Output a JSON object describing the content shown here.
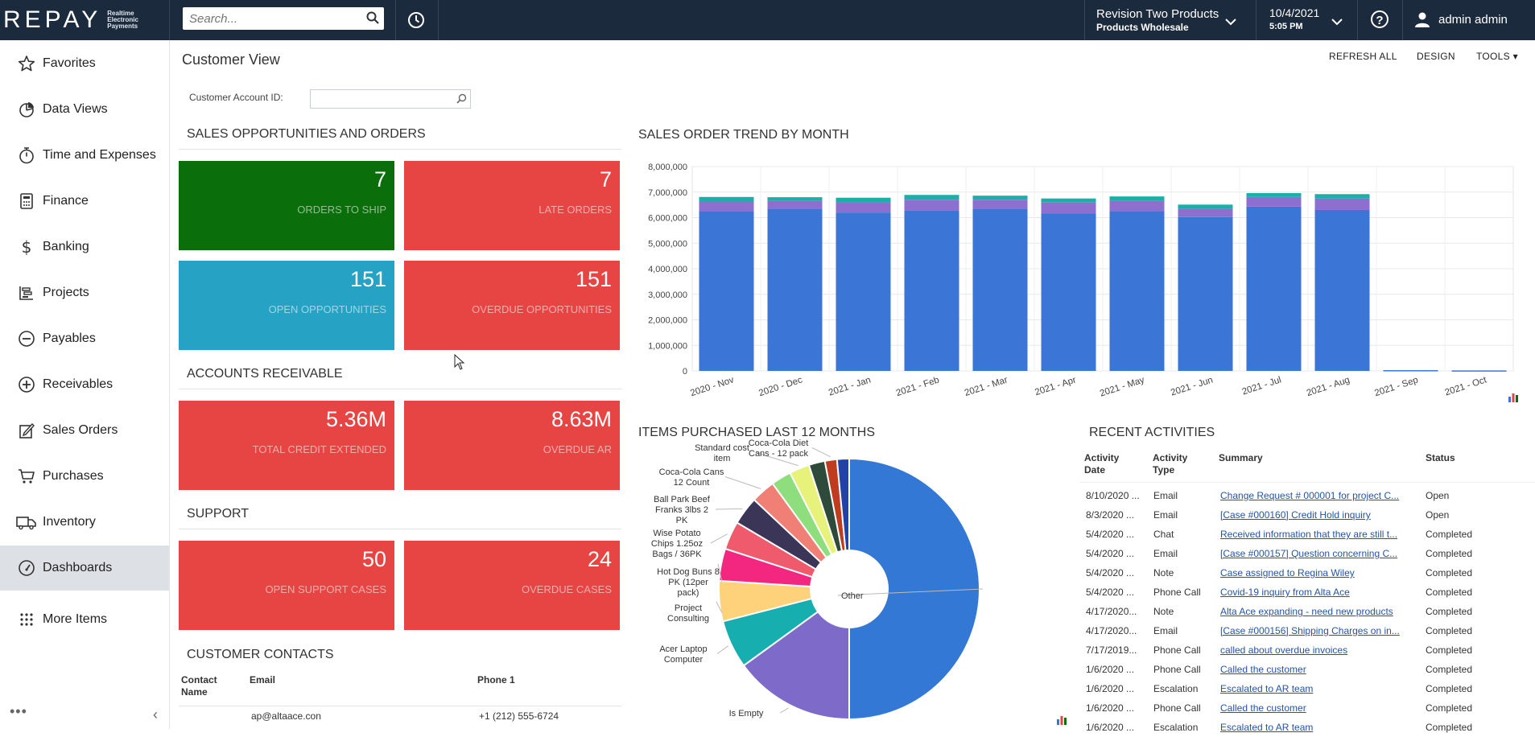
{
  "brand": {
    "name": "REPAY",
    "tagline": [
      "Realtime",
      "Electronic",
      "Payments"
    ]
  },
  "topbar": {
    "search_placeholder": "Search...",
    "company_line1": "Revision Two Products",
    "company_line2": "Products Wholesale",
    "date": "10/4/2021",
    "time": "5:05 PM",
    "help": "?",
    "user": "admin admin"
  },
  "sidebar": {
    "items": [
      {
        "label": "Favorites",
        "icon": "star-icon"
      },
      {
        "label": "Data Views",
        "icon": "pie-chart-icon"
      },
      {
        "label": "Time and Expenses",
        "icon": "stopwatch-icon"
      },
      {
        "label": "Finance",
        "icon": "calculator-icon"
      },
      {
        "label": "Banking",
        "icon": "dollar-icon"
      },
      {
        "label": "Projects",
        "icon": "projects-icon"
      },
      {
        "label": "Payables",
        "icon": "minus-circle-icon"
      },
      {
        "label": "Receivables",
        "icon": "plus-circle-icon"
      },
      {
        "label": "Sales Orders",
        "icon": "sales-orders-icon"
      },
      {
        "label": "Purchases",
        "icon": "cart-icon"
      },
      {
        "label": "Inventory",
        "icon": "truck-icon"
      },
      {
        "label": "Dashboards",
        "icon": "gauge-icon"
      },
      {
        "label": "More Items",
        "icon": "grid-icon"
      }
    ],
    "active": "Dashboards",
    "bottom_dots": "•••",
    "collapse": "‹"
  },
  "header": {
    "title": "Customer View",
    "actions": {
      "refresh": "REFRESH ALL",
      "design": "DESIGN",
      "tools": "TOOLS ▾"
    },
    "account_label": "Customer Account ID:",
    "account_value": ""
  },
  "sections": {
    "sales": "SALES OPPORTUNITIES AND ORDERS",
    "ar": "ACCOUNTS RECEIVABLE",
    "support": "SUPPORT",
    "contacts": "CUSTOMER CONTACTS",
    "trend": "SALES ORDER TREND BY MONTH",
    "items": "ITEMS PURCHASED LAST 12 MONTHS",
    "recent": "RECENT ACTIVITIES"
  },
  "tiles": {
    "orders_to_ship": {
      "value": "7",
      "label": "ORDERS TO SHIP"
    },
    "late_orders": {
      "value": "7",
      "label": "LATE ORDERS"
    },
    "open_opps": {
      "value": "151",
      "label": "OPEN OPPORTUNITIES"
    },
    "overdue_opps": {
      "value": "151",
      "label": "OVERDUE OPPORTUNITIES"
    },
    "credit_extended": {
      "value": "5.36M",
      "label": "TOTAL CREDIT EXTENDED"
    },
    "overdue_ar": {
      "value": "8.63M",
      "label": "OVERDUE AR"
    },
    "open_cases": {
      "value": "50",
      "label": "OPEN SUPPORT CASES"
    },
    "overdue_cases": {
      "value": "24",
      "label": "OVERDUE CASES"
    }
  },
  "contacts": {
    "headers": {
      "name": "Contact Name",
      "email": "Email",
      "phone": "Phone 1"
    },
    "rows": [
      {
        "name": "",
        "email": "ap@altaace.con",
        "phone": "+1 (212) 555-6724"
      }
    ]
  },
  "colors": {
    "topbar": "#1b2a3c",
    "green_tile": "#0a6e0a",
    "red_tile": "#e74444",
    "blue_tile": "#26a3c4",
    "bar_main": "#3b76d6",
    "bar_purple": "#8d6fd0",
    "bar_teal": "#1ab0a8",
    "link": "#2355a6"
  },
  "chart_data": [
    {
      "type": "bar",
      "stacked": true,
      "title": "SALES ORDER TREND BY MONTH",
      "categories": [
        "2020 - Nov",
        "2020 - Dec",
        "2021 - Jan",
        "2021 - Feb",
        "2021 - Mar",
        "2021 - Apr",
        "2021 - May",
        "2021 - Jun",
        "2021 - Jul",
        "2021 - Aug",
        "2021 - Sep",
        "2021 - Oct"
      ],
      "series": [
        {
          "color": "#3b76d6",
          "values": [
            6250000,
            6350000,
            6200000,
            6280000,
            6350000,
            6170000,
            6250000,
            6020000,
            6430000,
            6300000,
            30000,
            20000
          ]
        },
        {
          "color": "#8d6fd0",
          "values": [
            380000,
            300000,
            400000,
            420000,
            350000,
            420000,
            400000,
            330000,
            380000,
            450000,
            0,
            0
          ]
        },
        {
          "color": "#1ab0a8",
          "values": [
            180000,
            150000,
            180000,
            190000,
            160000,
            160000,
            180000,
            160000,
            150000,
            170000,
            0,
            0
          ]
        }
      ],
      "ylim": [
        0,
        8000000
      ],
      "yticks": [
        "0",
        "1,000,000",
        "2,000,000",
        "3,000,000",
        "4,000,000",
        "5,000,000",
        "6,000,000",
        "7,000,000",
        "8,000,000"
      ],
      "grid": true
    },
    {
      "type": "pie",
      "donut": true,
      "title": "ITEMS PURCHASED LAST 12 MONTHS",
      "slices": [
        {
          "label": "Other",
          "value": 50.0,
          "color": "#3478d6"
        },
        {
          "label": "Is Empty",
          "value": 15.0,
          "color": "#7e6bc9"
        },
        {
          "label": "Acer Laptop Computer",
          "value": 6.0,
          "color": "#17aeb0"
        },
        {
          "label": "Project Consulting",
          "value": 5.0,
          "color": "#fdd27a"
        },
        {
          "label": "Hot Dog Buns 8 PK (12per pack)",
          "value": 4.0,
          "color": "#f32680"
        },
        {
          "label": "Wise Potato Chips 1.25oz Bags / 36PK",
          "value": 3.5,
          "color": "#ef5b6c"
        },
        {
          "label": "Ball Park Beef Franks 3lbs 2 PK",
          "value": 3.5,
          "color": "#3b3558"
        },
        {
          "label": "Coca-Cola Cans 12 Count",
          "value": 3.0,
          "color": "#f07f76"
        },
        {
          "label": "",
          "value": 2.5,
          "color": "#8fde7d"
        },
        {
          "label": "Standard cost item",
          "value": 2.5,
          "color": "#e6f27a"
        },
        {
          "label": "",
          "value": 2.0,
          "color": "#2d4a3a"
        },
        {
          "label": "Coca-Cola Diet Cans - 12 pack",
          "value": 1.5,
          "color": "#bf3c1e"
        },
        {
          "label": "",
          "value": 1.5,
          "color": "#2242a8"
        }
      ]
    }
  ],
  "activities": {
    "headers": {
      "date": "Activity Date",
      "type": "Activity Type",
      "summary": "Summary",
      "status": "Status"
    },
    "rows": [
      {
        "date": "8/10/2020 ...",
        "type": "Email",
        "summary": "Change Request # 000001 for project C...",
        "status": "Open"
      },
      {
        "date": "8/3/2020 ...",
        "type": "Email",
        "summary": "[Case #000160] Credit Hold inquiry",
        "status": "Open"
      },
      {
        "date": "5/4/2020 ...",
        "type": "Chat",
        "summary": "Received information that they are still t...",
        "status": "Completed"
      },
      {
        "date": "5/4/2020 ...",
        "type": "Email",
        "summary": "[Case #000157] Question concerning C...",
        "status": "Completed"
      },
      {
        "date": "5/4/2020 ...",
        "type": "Note",
        "summary": "Case assigned to Regina Wiley",
        "status": "Completed"
      },
      {
        "date": "5/4/2020 ...",
        "type": "Phone Call",
        "summary": "Covid-19 inquiry from Alta Ace",
        "status": "Completed"
      },
      {
        "date": "4/17/2020...",
        "type": "Note",
        "summary": "Alta Ace expanding - need new products",
        "status": "Completed"
      },
      {
        "date": "4/17/2020...",
        "type": "Email",
        "summary": "[Case #000156] Shipping Charges on in...",
        "status": "Completed"
      },
      {
        "date": "7/17/2019...",
        "type": "Phone Call",
        "summary": "called about overdue invoices",
        "status": "Completed"
      },
      {
        "date": "1/6/2020 ...",
        "type": "Phone Call",
        "summary": "Called the customer",
        "status": "Completed"
      },
      {
        "date": "1/6/2020 ...",
        "type": "Escalation",
        "summary": "Escalated to AR team",
        "status": "Completed"
      },
      {
        "date": "1/6/2020 ...",
        "type": "Phone Call",
        "summary": "Called the customer",
        "status": "Completed"
      },
      {
        "date": "1/6/2020 ...",
        "type": "Escalation",
        "summary": "Escalated to AR team",
        "status": "Completed"
      }
    ]
  }
}
